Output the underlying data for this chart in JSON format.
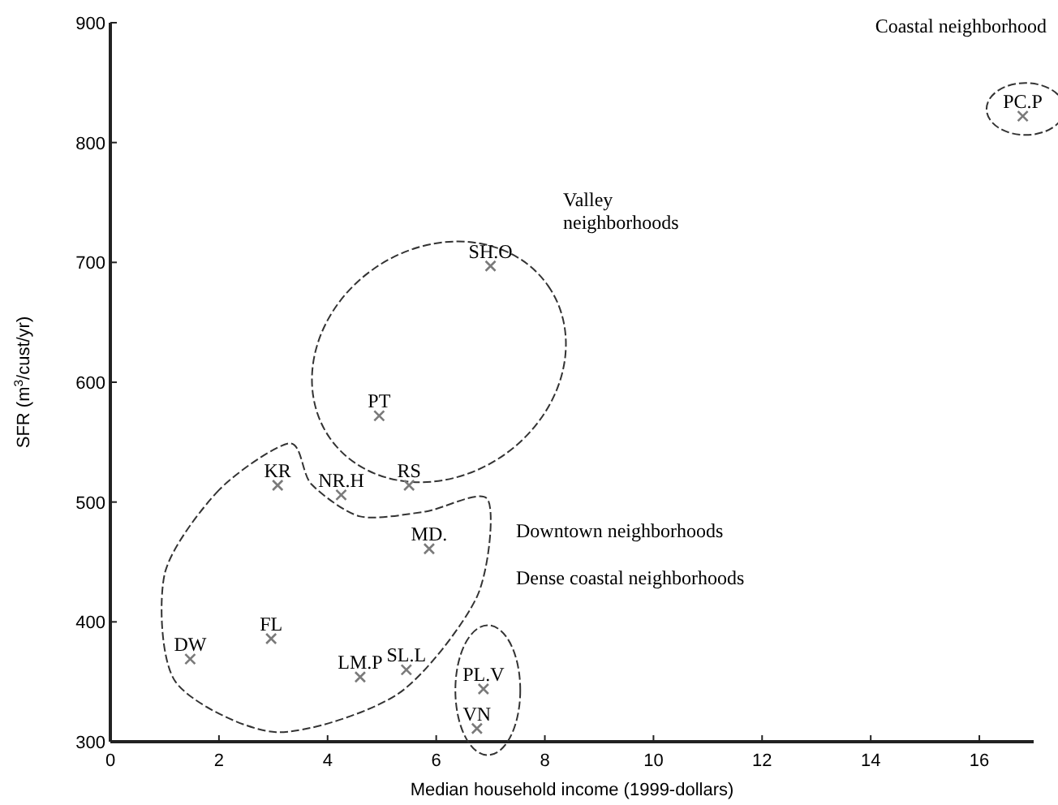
{
  "chart_data": {
    "type": "scatter",
    "xlabel": "Median household income (1999-dollars)",
    "ylabel": "SFR (m$^{3}$/cust/yr)",
    "xlim": [
      0,
      17
    ],
    "ylim": [
      300,
      900
    ],
    "xticks": [
      0,
      2,
      4,
      6,
      8,
      10,
      12,
      14,
      16
    ],
    "yticks": [
      300,
      400,
      500,
      600,
      700,
      800,
      900
    ],
    "marker": "cross",
    "series": [
      {
        "color": "#7a7a7a",
        "x": [
          7.0,
          4.95,
          3.08,
          4.25,
          5.5,
          5.87,
          1.47,
          2.96,
          4.6,
          5.45,
          6.87,
          6.75,
          16.8
        ],
        "values": [
          697,
          572,
          514,
          506,
          514,
          461,
          369,
          386,
          354,
          360,
          344,
          311,
          822
        ]
      }
    ],
    "annotations": [
      {
        "text": "SH.O",
        "x": 7.0,
        "y": 697
      },
      {
        "text": "PT",
        "x": 4.95,
        "y": 572
      },
      {
        "text": "KR",
        "x": 3.08,
        "y": 514
      },
      {
        "text": "NR.H",
        "x": 4.25,
        "y": 506
      },
      {
        "text": "RS",
        "x": 5.5,
        "y": 514
      },
      {
        "text": "MD.",
        "x": 5.87,
        "y": 461
      },
      {
        "text": "DW",
        "x": 1.47,
        "y": 369
      },
      {
        "text": "FL",
        "x": 2.96,
        "y": 386
      },
      {
        "text": "LM.P",
        "x": 4.6,
        "y": 354
      },
      {
        "text": "SL.L",
        "x": 5.45,
        "y": 360
      },
      {
        "text": "PL.V",
        "x": 6.87,
        "y": 344
      },
      {
        "text": "VN",
        "x": 6.75,
        "y": 311
      },
      {
        "text": "PC.P",
        "x": 16.8,
        "y": 822
      },
      "Coastal neighborhood",
      "Valley neighborhoods",
      "Downtown neighborhoods",
      "Dense coastal neighborhoods"
    ]
  }
}
